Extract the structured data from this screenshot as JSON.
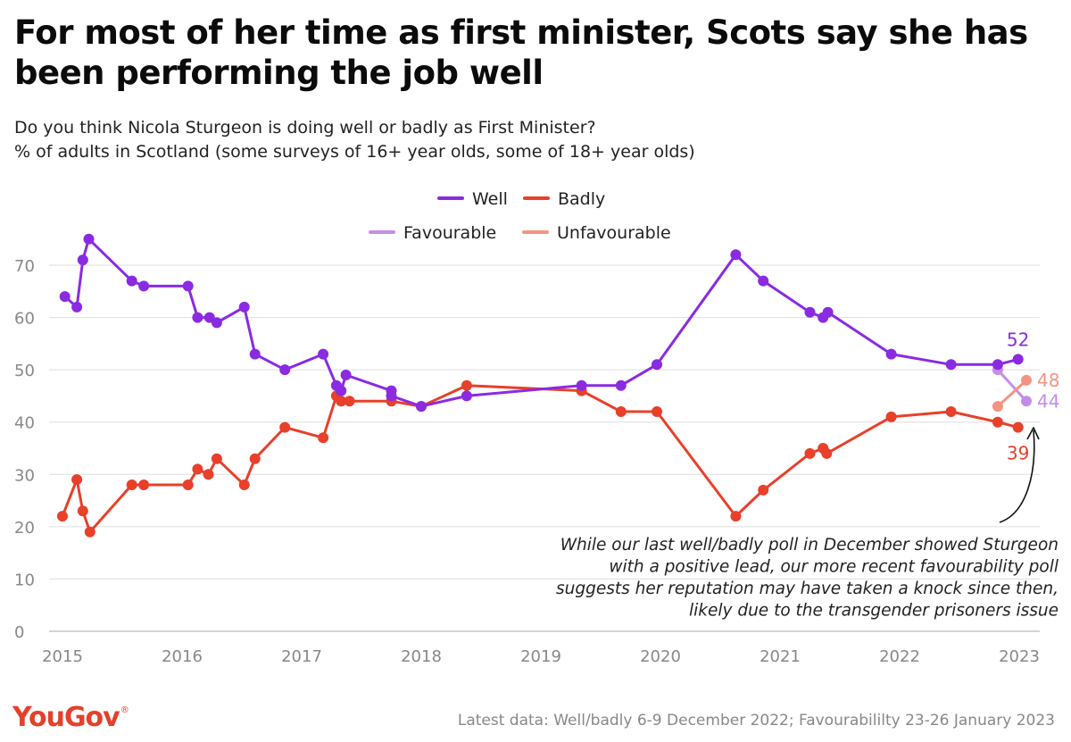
{
  "title": "For most of her time as first minister, Scots say she has been performing the job well",
  "subtitle_lines": [
    "Do you think Nicola Sturgeon is doing well or badly as First Minister?",
    "% of adults in Scotland (some surveys of 16+ year olds, some of 18+ year olds)"
  ],
  "footer": "Latest data: Well/badly 6-9 December 2022; Favourabililty 23-26 January 2023",
  "logo": {
    "text": "YouGov",
    "mark": "®"
  },
  "colors": {
    "well": "#8a2be2",
    "badly": "#e8402a",
    "favourable": "#c48ee8",
    "unfavourable": "#f39483",
    "grid": "#dddddd"
  },
  "chart_data": {
    "type": "line",
    "x_axis": {
      "min": 2015.0,
      "max": 2023.15,
      "ticks": [
        "2015",
        "2016",
        "2017",
        "2018",
        "2019",
        "2020",
        "2021",
        "2022",
        "2023"
      ]
    },
    "y_axis": {
      "min": 0,
      "max": 75,
      "ticks": [
        0,
        10,
        20,
        30,
        40,
        50,
        60,
        70
      ]
    },
    "grid": true,
    "legend_placement": "top-center",
    "series": [
      {
        "name": "Well",
        "key": "well",
        "points": [
          [
            2015.02,
            64
          ],
          [
            2015.12,
            62
          ],
          [
            2015.17,
            71
          ],
          [
            2015.22,
            75
          ],
          [
            2015.58,
            67
          ],
          [
            2015.68,
            66
          ],
          [
            2016.05,
            66
          ],
          [
            2016.13,
            60
          ],
          [
            2016.23,
            60
          ],
          [
            2016.29,
            59
          ],
          [
            2016.52,
            62
          ],
          [
            2016.61,
            53
          ],
          [
            2016.86,
            50
          ],
          [
            2017.18,
            53
          ],
          [
            2017.29,
            47
          ],
          [
            2017.33,
            46
          ],
          [
            2017.37,
            49
          ],
          [
            2017.75,
            46
          ],
          [
            2017.75,
            45
          ],
          [
            2018.0,
            43
          ],
          [
            2018.38,
            45
          ],
          [
            2019.34,
            47
          ],
          [
            2019.67,
            47
          ],
          [
            2019.97,
            51
          ],
          [
            2020.63,
            72
          ],
          [
            2020.86,
            67
          ],
          [
            2021.25,
            61
          ],
          [
            2021.36,
            60
          ],
          [
            2021.4,
            61
          ],
          [
            2021.93,
            53
          ],
          [
            2022.43,
            51
          ],
          [
            2022.82,
            51
          ],
          [
            2022.99,
            52
          ]
        ],
        "end_label": "52"
      },
      {
        "name": "Badly",
        "key": "badly",
        "points": [
          [
            2015.0,
            22
          ],
          [
            2015.12,
            29
          ],
          [
            2015.17,
            23
          ],
          [
            2015.23,
            19
          ],
          [
            2015.58,
            28
          ],
          [
            2015.68,
            28
          ],
          [
            2016.05,
            28
          ],
          [
            2016.13,
            31
          ],
          [
            2016.22,
            30
          ],
          [
            2016.29,
            33
          ],
          [
            2016.52,
            28
          ],
          [
            2016.61,
            33
          ],
          [
            2016.86,
            39
          ],
          [
            2017.18,
            37
          ],
          [
            2017.29,
            45
          ],
          [
            2017.33,
            44
          ],
          [
            2017.4,
            44
          ],
          [
            2017.75,
            44
          ],
          [
            2018.0,
            43
          ],
          [
            2018.38,
            47
          ],
          [
            2019.34,
            46
          ],
          [
            2019.67,
            42
          ],
          [
            2019.97,
            42
          ],
          [
            2020.63,
            22
          ],
          [
            2020.86,
            27
          ],
          [
            2021.25,
            34
          ],
          [
            2021.36,
            35
          ],
          [
            2021.39,
            34
          ],
          [
            2021.93,
            41
          ],
          [
            2022.43,
            42
          ],
          [
            2022.82,
            40
          ],
          [
            2022.99,
            39
          ]
        ],
        "end_label": "39"
      },
      {
        "name": "Favourable",
        "key": "favourable",
        "points": [
          [
            2022.82,
            50
          ],
          [
            2023.06,
            44
          ]
        ],
        "end_label": "44"
      },
      {
        "name": "Unfavourable",
        "key": "unfavourable",
        "points": [
          [
            2022.82,
            43
          ],
          [
            2023.06,
            48
          ]
        ],
        "end_label": "48"
      }
    ],
    "annotation": {
      "lines": [
        "While our last well/badly poll in December showed Sturgeon",
        "with a positive lead, our more recent favourability poll",
        "suggests her reputation may have taken a knock since then,",
        "likely due to the transgender prisoners issue"
      ]
    }
  }
}
